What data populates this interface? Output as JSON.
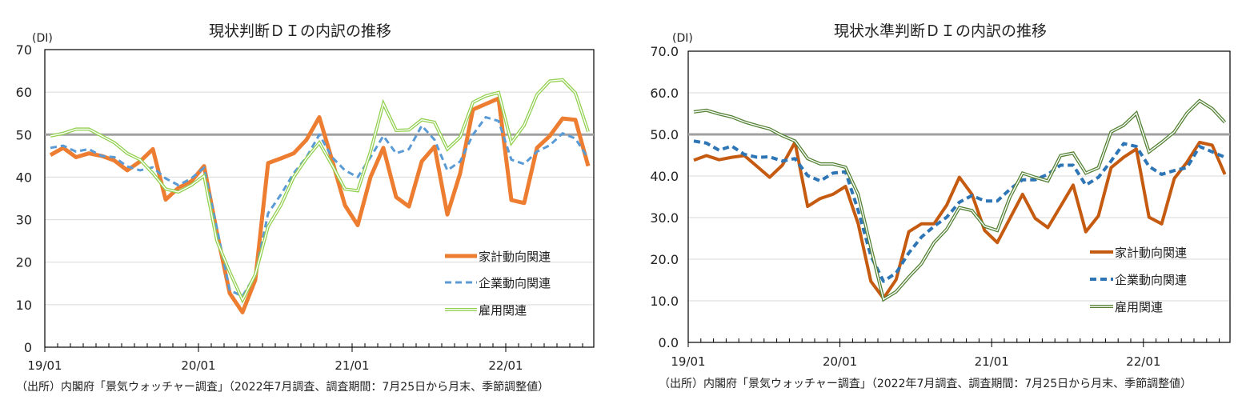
{
  "chart_data": [
    {
      "type": "line",
      "title": "現状判断ＤＩの内訳の推移",
      "ylabel": "(DI)",
      "xlabel": "",
      "ylim": [
        0,
        70
      ],
      "yticks": [
        "0",
        "10",
        "20",
        "30",
        "40",
        "50",
        "60",
        "70"
      ],
      "xtick_labels": [
        "19/01",
        "20/01",
        "21/01",
        "22/01"
      ],
      "x_start": "2019-01",
      "x_end": "2022-07",
      "frequency": "monthly",
      "reference_line": 50,
      "grid": true,
      "legend_position": "bottom-right",
      "source": "（出所）内閣府「景気ウォッチャー調査」（2022年7月調査、調査期間：7月25日から月末、季節調整値）",
      "series": [
        {
          "name": "家計動向関連",
          "style": "solid",
          "color": "#ED7D31",
          "values": [
            45.2,
            46.9,
            44.7,
            45.6,
            45.0,
            43.9,
            41.6,
            43.7,
            46.6,
            34.7,
            37.5,
            39.0,
            42.6,
            27.0,
            12.7,
            8.2,
            15.8,
            43.3,
            44.4,
            45.6,
            48.8,
            54.1,
            44.0,
            33.4,
            28.7,
            40.0,
            46.9,
            35.3,
            33.1,
            43.7,
            47.2,
            31.2,
            40.9,
            55.9,
            57.2,
            58.5,
            34.6,
            33.9,
            46.9,
            49.7,
            53.8,
            53.5,
            42.6
          ]
        },
        {
          "name": "企業動向関連",
          "style": "dashed",
          "color": "#5B9BD5",
          "values": [
            46.9,
            47.4,
            46.0,
            46.6,
            45.0,
            44.7,
            42.5,
            41.6,
            42.3,
            39.7,
            38.1,
            39.7,
            42.2,
            28.0,
            13.4,
            12.0,
            17.0,
            31.5,
            35.9,
            40.9,
            44.7,
            50.0,
            44.7,
            41.6,
            40.0,
            44.7,
            49.7,
            45.6,
            46.6,
            52.1,
            48.8,
            41.6,
            43.7,
            50.0,
            54.1,
            53.2,
            44.1,
            43.1,
            46.0,
            47.5,
            50.3,
            49.1,
            44.4
          ]
        },
        {
          "name": "雇用関連",
          "style": "double",
          "color": "#92D050",
          "values": [
            49.7,
            50.3,
            51.3,
            51.3,
            49.7,
            48.1,
            45.6,
            44.1,
            40.9,
            37.2,
            36.5,
            38.1,
            40.3,
            25.0,
            17.7,
            11.1,
            17.1,
            28.4,
            33.4,
            40.0,
            44.4,
            48.1,
            42.8,
            37.2,
            36.8,
            46.0,
            57.3,
            51.0,
            51.1,
            53.5,
            52.9,
            46.6,
            49.4,
            57.6,
            59.1,
            59.9,
            48.1,
            52.2,
            59.4,
            62.6,
            62.9,
            59.8,
            50.7
          ]
        }
      ]
    },
    {
      "type": "line",
      "title": "現状水準判断ＤＩの内訳の推移",
      "ylabel": "(DI)",
      "xlabel": "",
      "ylim": [
        0,
        70
      ],
      "yticks": [
        "0.0",
        "10.0",
        "20.0",
        "30.0",
        "40.0",
        "50.0",
        "60.0",
        "70.0"
      ],
      "xtick_labels": [
        "19/01",
        "20/01",
        "21/01",
        "22/01"
      ],
      "x_start": "2019-01",
      "x_end": "2022-07",
      "frequency": "monthly",
      "reference_line": 50,
      "grid": true,
      "legend_position": "bottom-right",
      "source": "（出所）内閣府「景気ウォッチャー調査」（2022年7月調査、調査期間：7月25日から月末、季節調整値）",
      "series": [
        {
          "name": "家計動向関連",
          "style": "solid",
          "color": "#C55A11",
          "values": [
            43.8,
            44.9,
            43.9,
            44.5,
            44.9,
            42.3,
            39.7,
            42.6,
            48.1,
            32.7,
            34.6,
            35.6,
            37.5,
            28.5,
            14.7,
            10.6,
            15.1,
            26.6,
            28.5,
            28.5,
            33.0,
            39.7,
            35.6,
            26.9,
            24.0,
            29.8,
            35.6,
            29.8,
            27.6,
            32.7,
            37.8,
            26.6,
            30.4,
            42.0,
            44.5,
            46.5,
            30.1,
            28.5,
            39.4,
            43.3,
            48.1,
            47.4,
            40.4
          ]
        },
        {
          "name": "企業動向関連",
          "style": "dashed",
          "color": "#2E75B6",
          "values": [
            48.4,
            47.9,
            46.2,
            47.2,
            45.2,
            44.5,
            44.6,
            43.6,
            44.2,
            40.1,
            38.8,
            40.7,
            41.0,
            31.7,
            20.8,
            14.7,
            16.7,
            21.5,
            25.3,
            27.9,
            30.1,
            33.7,
            35.3,
            34.0,
            34.0,
            36.8,
            39.1,
            39.1,
            40.4,
            42.6,
            42.6,
            37.8,
            39.7,
            43.6,
            47.8,
            47.1,
            42.3,
            40.4,
            41.3,
            42.0,
            47.1,
            45.8,
            44.5
          ]
        },
        {
          "name": "雇用関連",
          "style": "double",
          "color": "#548235",
          "values": [
            55.4,
            55.8,
            54.9,
            54.2,
            53.0,
            52.1,
            51.3,
            49.7,
            48.4,
            44.2,
            42.9,
            42.9,
            42.1,
            35.6,
            22.8,
            10.3,
            12.2,
            15.7,
            18.9,
            24.0,
            27.2,
            32.4,
            31.7,
            27.9,
            26.9,
            34.9,
            40.7,
            39.7,
            38.8,
            44.9,
            45.5,
            40.7,
            42.0,
            50.6,
            52.2,
            55.1,
            45.8,
            48.1,
            50.6,
            55.1,
            58.1,
            56.2,
            52.9
          ]
        }
      ]
    }
  ]
}
